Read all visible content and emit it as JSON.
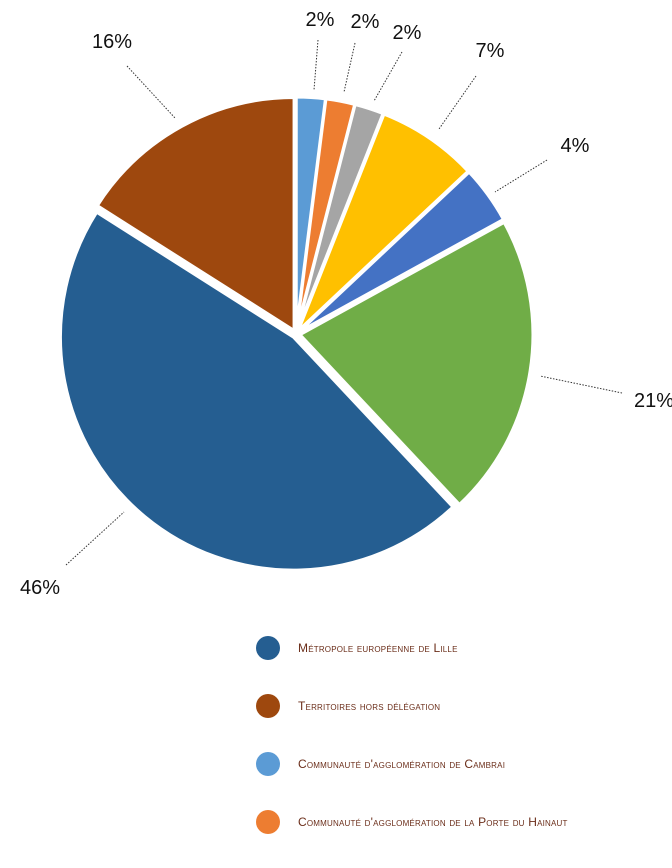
{
  "chart_data": {
    "type": "pie",
    "slices": [
      {
        "label": "Communauté d'agglomération de Cambrai",
        "value": 2,
        "display": "2%",
        "color": "#5B9BD5"
      },
      {
        "label": "Communauté d'agglomération de la Porte du Hainaut",
        "value": 2,
        "display": "2%",
        "color": "#ED7D31"
      },
      {
        "label": "",
        "value": 2,
        "display": "2%",
        "color": "#A5A5A5"
      },
      {
        "label": "",
        "value": 7,
        "display": "7%",
        "color": "#FFC000"
      },
      {
        "label": "",
        "value": 4,
        "display": "4%",
        "color": "#4472C4"
      },
      {
        "label": "",
        "value": 21,
        "display": "21%",
        "color": "#70AD47"
      },
      {
        "label": "Métropole européenne de Lille",
        "value": 46,
        "display": "46%",
        "color": "#255E91"
      },
      {
        "label": "Territoires hors délégation",
        "value": 16,
        "display": "16%",
        "color": "#9E480E"
      }
    ],
    "legend": {
      "placement": "bottom",
      "entries": [
        {
          "label": "Métropole européenne de Lille",
          "color": "#255E91"
        },
        {
          "label": "Territoires hors délégation",
          "color": "#9E480E"
        },
        {
          "label": "Communauté d'agglomération de Cambrai",
          "color": "#5B9BD5"
        },
        {
          "label": "Communauté d'agglomération de la Porte du Hainaut",
          "color": "#ED7D31"
        }
      ]
    }
  }
}
